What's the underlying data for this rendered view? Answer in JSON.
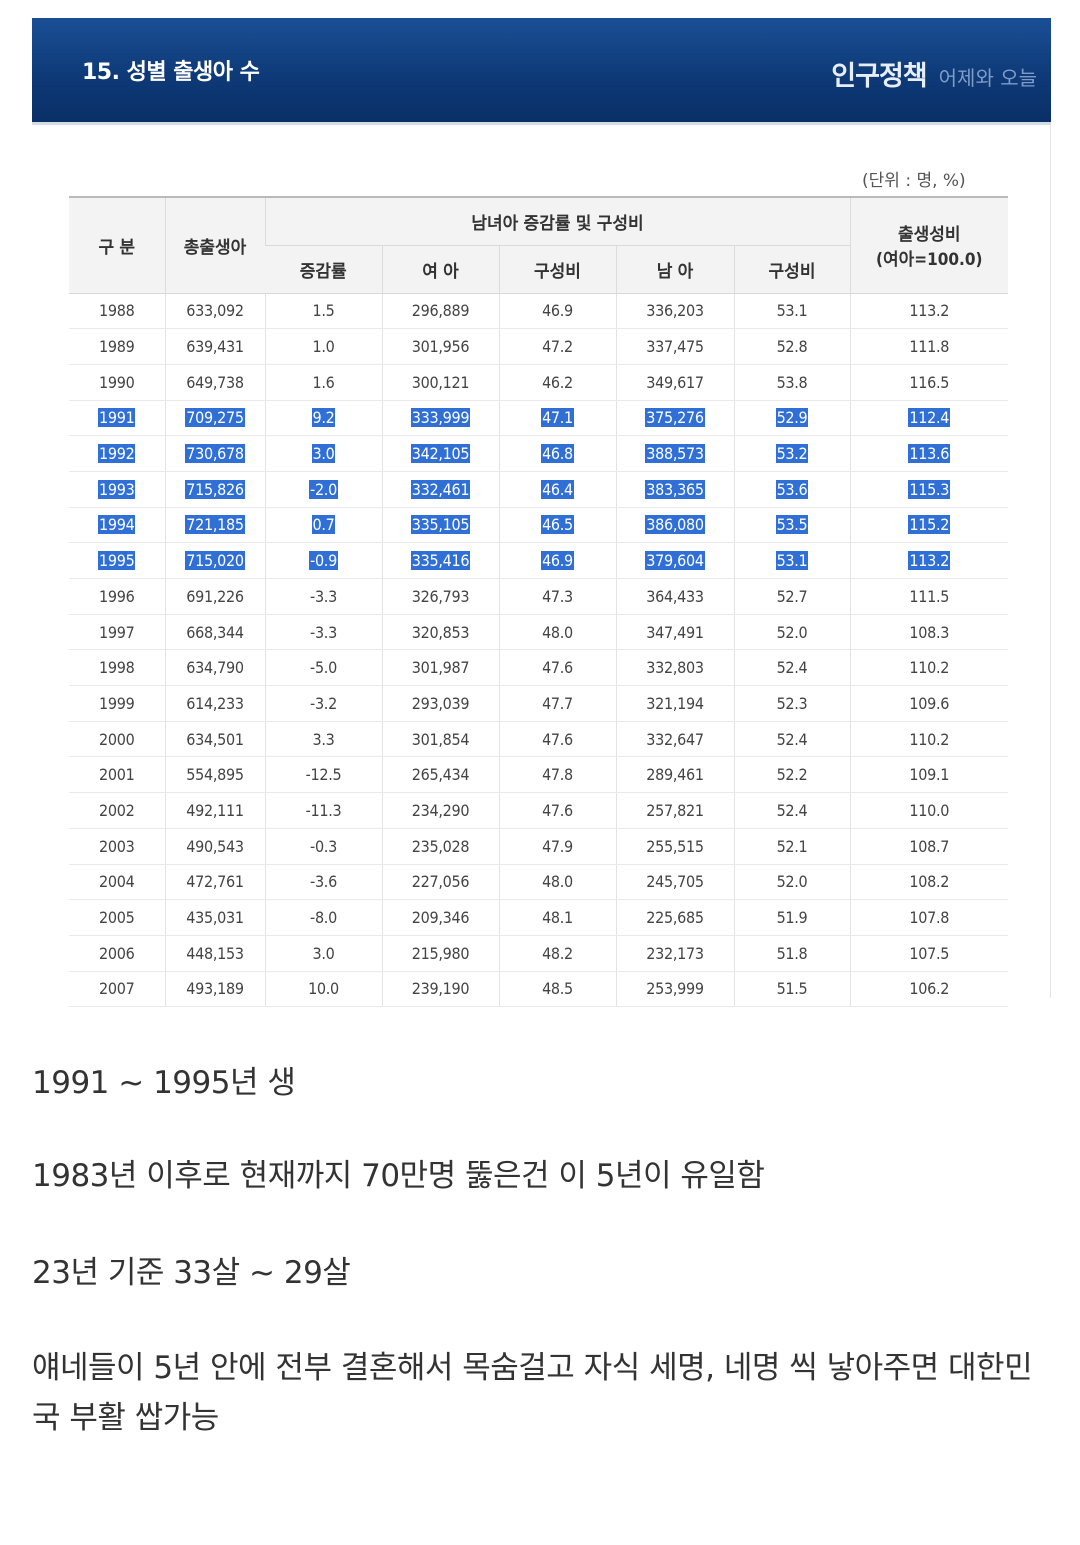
{
  "banner": {
    "title": "15. 성별 출생아 수",
    "brand_main": "인구정책",
    "brand_sub": "어제와 오늘"
  },
  "unit_note": "(단위 : 명, %)",
  "table": {
    "headers": {
      "category": "구 분",
      "total": "총출생아",
      "group": "남녀아 증감률 및 구성비",
      "change_rate": "증감률",
      "female": "여 아",
      "female_ratio": "구성비",
      "male": "남 아",
      "male_ratio": "구성비",
      "sex_ratio_line1": "출생성비",
      "sex_ratio_line2": "(여아=100.0)"
    },
    "rows": [
      {
        "year": "1988",
        "total": "633,092",
        "change": "1.5",
        "female": "296,889",
        "female_ratio": "46.9",
        "male": "336,203",
        "male_ratio": "53.1",
        "sex_ratio": "113.2",
        "highlighted": false
      },
      {
        "year": "1989",
        "total": "639,431",
        "change": "1.0",
        "female": "301,956",
        "female_ratio": "47.2",
        "male": "337,475",
        "male_ratio": "52.8",
        "sex_ratio": "111.8",
        "highlighted": false
      },
      {
        "year": "1990",
        "total": "649,738",
        "change": "1.6",
        "female": "300,121",
        "female_ratio": "46.2",
        "male": "349,617",
        "male_ratio": "53.8",
        "sex_ratio": "116.5",
        "highlighted": false
      },
      {
        "year": "1991",
        "total": "709,275",
        "change": "9.2",
        "female": "333,999",
        "female_ratio": "47.1",
        "male": "375,276",
        "male_ratio": "52.9",
        "sex_ratio": "112.4",
        "highlighted": true
      },
      {
        "year": "1992",
        "total": "730,678",
        "change": "3.0",
        "female": "342,105",
        "female_ratio": "46.8",
        "male": "388,573",
        "male_ratio": "53.2",
        "sex_ratio": "113.6",
        "highlighted": true
      },
      {
        "year": "1993",
        "total": "715,826",
        "change": "-2.0",
        "female": "332,461",
        "female_ratio": "46.4",
        "male": "383,365",
        "male_ratio": "53.6",
        "sex_ratio": "115.3",
        "highlighted": true
      },
      {
        "year": "1994",
        "total": "721,185",
        "change": "0.7",
        "female": "335,105",
        "female_ratio": "46.5",
        "male": "386,080",
        "male_ratio": "53.5",
        "sex_ratio": "115.2",
        "highlighted": true
      },
      {
        "year": "1995",
        "total": "715,020",
        "change": "-0.9",
        "female": "335,416",
        "female_ratio": "46.9",
        "male": "379,604",
        "male_ratio": "53.1",
        "sex_ratio": "113.2",
        "highlighted": true
      },
      {
        "year": "1996",
        "total": "691,226",
        "change": "-3.3",
        "female": "326,793",
        "female_ratio": "47.3",
        "male": "364,433",
        "male_ratio": "52.7",
        "sex_ratio": "111.5",
        "highlighted": false
      },
      {
        "year": "1997",
        "total": "668,344",
        "change": "-3.3",
        "female": "320,853",
        "female_ratio": "48.0",
        "male": "347,491",
        "male_ratio": "52.0",
        "sex_ratio": "108.3",
        "highlighted": false
      },
      {
        "year": "1998",
        "total": "634,790",
        "change": "-5.0",
        "female": "301,987",
        "female_ratio": "47.6",
        "male": "332,803",
        "male_ratio": "52.4",
        "sex_ratio": "110.2",
        "highlighted": false
      },
      {
        "year": "1999",
        "total": "614,233",
        "change": "-3.2",
        "female": "293,039",
        "female_ratio": "47.7",
        "male": "321,194",
        "male_ratio": "52.3",
        "sex_ratio": "109.6",
        "highlighted": false
      },
      {
        "year": "2000",
        "total": "634,501",
        "change": "3.3",
        "female": "301,854",
        "female_ratio": "47.6",
        "male": "332,647",
        "male_ratio": "52.4",
        "sex_ratio": "110.2",
        "highlighted": false
      },
      {
        "year": "2001",
        "total": "554,895",
        "change": "-12.5",
        "female": "265,434",
        "female_ratio": "47.8",
        "male": "289,461",
        "male_ratio": "52.2",
        "sex_ratio": "109.1",
        "highlighted": false
      },
      {
        "year": "2002",
        "total": "492,111",
        "change": "-11.3",
        "female": "234,290",
        "female_ratio": "47.6",
        "male": "257,821",
        "male_ratio": "52.4",
        "sex_ratio": "110.0",
        "highlighted": false
      },
      {
        "year": "2003",
        "total": "490,543",
        "change": "-0.3",
        "female": "235,028",
        "female_ratio": "47.9",
        "male": "255,515",
        "male_ratio": "52.1",
        "sex_ratio": "108.7",
        "highlighted": false
      },
      {
        "year": "2004",
        "total": "472,761",
        "change": "-3.6",
        "female": "227,056",
        "female_ratio": "48.0",
        "male": "245,705",
        "male_ratio": "52.0",
        "sex_ratio": "108.2",
        "highlighted": false
      },
      {
        "year": "2005",
        "total": "435,031",
        "change": "-8.0",
        "female": "209,346",
        "female_ratio": "48.1",
        "male": "225,685",
        "male_ratio": "51.9",
        "sex_ratio": "107.8",
        "highlighted": false
      },
      {
        "year": "2006",
        "total": "448,153",
        "change": "3.0",
        "female": "215,980",
        "female_ratio": "48.2",
        "male": "232,173",
        "male_ratio": "51.8",
        "sex_ratio": "107.5",
        "highlighted": false
      },
      {
        "year": "2007",
        "total": "493,189",
        "change": "10.0",
        "female": "239,190",
        "female_ratio": "48.5",
        "male": "253,999",
        "male_ratio": "51.5",
        "sex_ratio": "106.2",
        "highlighted": false
      }
    ]
  },
  "post": {
    "line1": "1991 ~ 1995년 생",
    "line2": "1983년 이후로 현재까지 70만명 뚫은건 이 5년이 유일함",
    "line3": "23년 기준 33살 ~ 29살",
    "line4": "얘네들이 5년 안에 전부 결혼해서 목숨걸고 자식 세명, 네명 씩 낳아주면 대한민국 부활 쌉가능"
  },
  "colors": {
    "banner": "#0e3a78",
    "highlight": "#2f6fd6",
    "header_bg": "#f3f3f3"
  }
}
